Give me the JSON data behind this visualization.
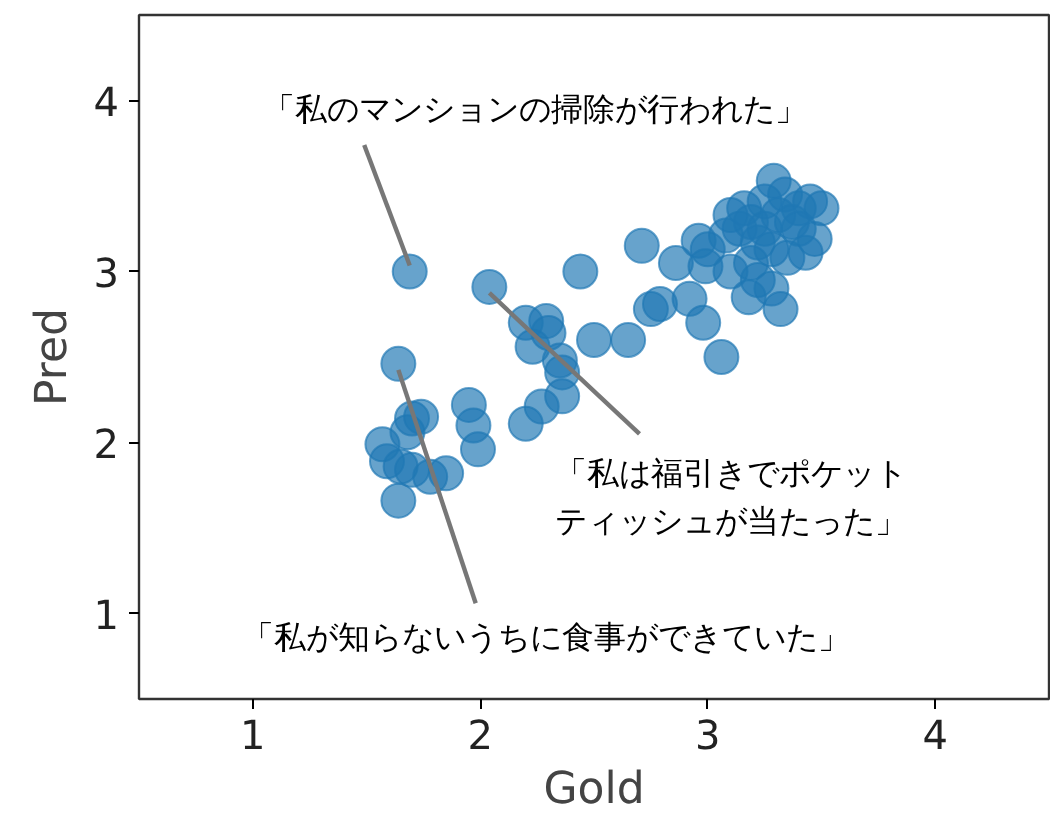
{
  "chart_data": {
    "type": "scatter",
    "xlabel": "Gold",
    "ylabel": "Pred",
    "xlim": [
      0.5,
      4.5
    ],
    "ylim": [
      0.5,
      4.5
    ],
    "xticks": [
      1,
      2,
      3,
      4
    ],
    "yticks": [
      1,
      2,
      3,
      4
    ],
    "grid": false,
    "marker": "circle",
    "series": [
      {
        "color": "#1f77b4",
        "x": [
          1.69,
          1.64,
          2.04,
          2.44,
          2.71,
          2.86,
          2.96,
          3.0,
          2.99,
          2.75,
          2.79,
          2.92,
          2.98,
          3.06,
          2.5,
          2.65,
          2.2,
          2.29,
          2.23,
          2.3,
          2.35,
          2.36,
          2.36,
          2.27,
          2.2,
          1.95,
          1.97,
          1.99,
          1.57,
          1.59,
          1.68,
          1.7,
          1.74,
          1.65,
          1.7,
          1.78,
          1.85,
          1.64,
          3.29,
          3.16,
          3.25,
          3.34,
          3.4,
          3.45,
          3.5,
          3.47,
          3.43,
          3.35,
          3.32,
          3.28,
          3.18,
          3.22,
          3.1,
          3.08,
          3.14,
          3.19,
          3.25,
          3.31,
          3.37,
          3.22,
          3.28,
          3.19,
          3.4,
          3.1
        ],
        "values": [
          3.0,
          2.46,
          2.91,
          3.0,
          3.15,
          3.05,
          3.18,
          3.13,
          3.03,
          2.78,
          2.81,
          2.84,
          2.7,
          2.5,
          2.6,
          2.6,
          2.7,
          2.71,
          2.56,
          2.64,
          2.48,
          2.41,
          2.27,
          2.21,
          2.11,
          2.22,
          2.1,
          1.96,
          1.99,
          1.89,
          2.06,
          2.14,
          2.15,
          1.86,
          1.84,
          1.8,
          1.82,
          1.66,
          3.53,
          3.37,
          3.41,
          3.45,
          3.37,
          3.41,
          3.37,
          3.19,
          3.11,
          3.08,
          2.78,
          2.9,
          2.85,
          2.95,
          3.0,
          3.21,
          3.25,
          3.29,
          3.25,
          3.33,
          3.29,
          3.17,
          3.13,
          3.05,
          3.25,
          3.33
        ]
      }
    ],
    "annotations": [
      {
        "text": "「私のマンションの掃除が行われた」",
        "x": 1.69,
        "y": 3.0
      },
      {
        "text": "「私は福引きでポケットティッシュが当たった」",
        "x": 2.04,
        "y": 2.91
      },
      {
        "text": "「私が知らないうちに食事ができていた」",
        "x": 1.64,
        "y": 2.46
      }
    ]
  }
}
